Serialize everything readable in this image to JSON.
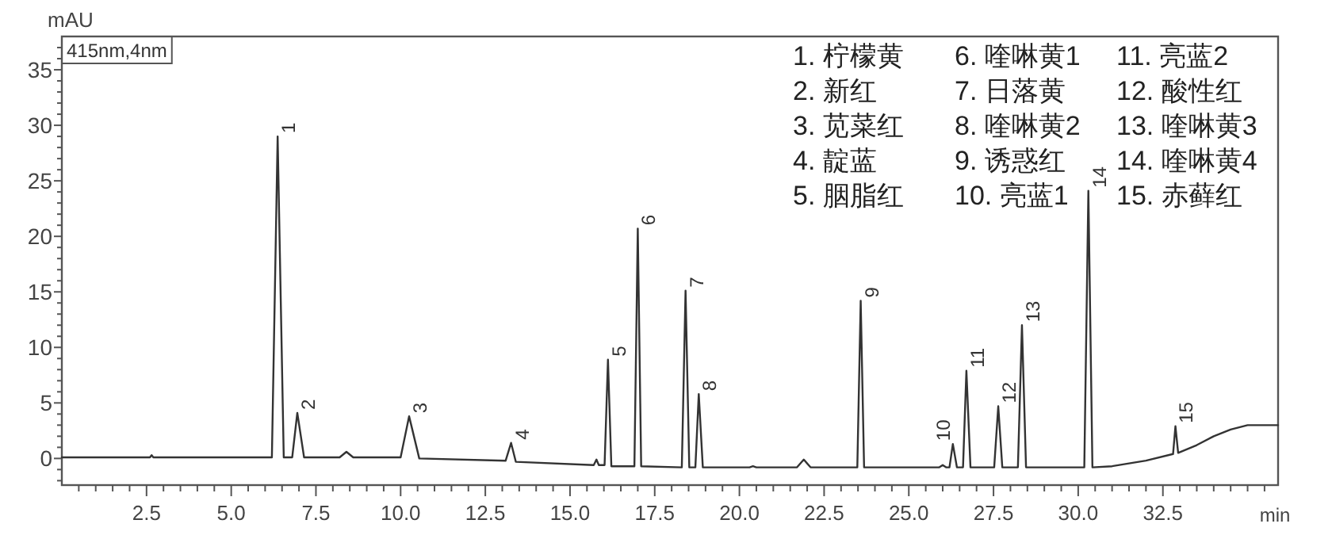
{
  "chart_data": {
    "type": "line",
    "xlabel": "min",
    "ylabel": "mAU",
    "x": [
      0,
      2.6,
      2.65,
      2.7,
      6.2,
      6.37,
      6.55,
      6.8,
      6.95,
      7.15,
      8.2,
      8.4,
      8.6,
      10.0,
      10.25,
      10.55,
      13.1,
      13.26,
      13.4,
      15.7,
      15.78,
      15.85,
      16.02,
      16.12,
      16.22,
      16.9,
      17.0,
      17.1,
      18.3,
      18.41,
      18.52,
      18.7,
      18.8,
      18.92,
      20.3,
      20.4,
      20.5,
      21.7,
      21.9,
      22.1,
      23.48,
      23.58,
      23.68,
      25.9,
      26.0,
      26.1,
      26.2,
      26.3,
      26.42,
      26.6,
      26.7,
      26.82,
      27.52,
      27.64,
      27.76,
      28.22,
      28.34,
      28.46,
      30.18,
      30.3,
      30.42,
      31.0,
      32.0,
      32.8,
      32.87,
      32.95,
      33.5,
      34.0,
      34.5,
      35.0,
      35.9
    ],
    "series": [
      {
        "color": "#333333",
        "values": [
          0.1,
          0.1,
          0.3,
          0.1,
          0.1,
          29.0,
          0.1,
          0.1,
          4.1,
          0.1,
          0.1,
          0.6,
          0.1,
          0.1,
          3.8,
          0.0,
          -0.2,
          1.4,
          -0.3,
          -0.6,
          -0.1,
          -0.6,
          -0.6,
          8.9,
          -0.7,
          -0.7,
          20.7,
          -0.7,
          -0.8,
          15.1,
          -0.8,
          -0.8,
          5.8,
          -0.8,
          -0.8,
          -0.7,
          -0.8,
          -0.8,
          -0.1,
          -0.8,
          -0.8,
          14.2,
          -0.8,
          -0.8,
          -0.6,
          -0.8,
          -0.8,
          1.3,
          -0.8,
          -0.8,
          7.9,
          -0.8,
          -0.8,
          4.7,
          -0.8,
          -0.8,
          12.0,
          -0.8,
          -0.8,
          24.1,
          -0.8,
          -0.7,
          -0.2,
          0.4,
          2.9,
          0.5,
          1.2,
          2.0,
          2.6,
          3.0,
          3.0
        ]
      }
    ],
    "xlim": [
      0,
      35.9
    ],
    "ylim": [
      -2.4,
      38
    ],
    "xticks": [
      {
        "value": 0.5,
        "label": null
      },
      {
        "value": 1.0,
        "label": null
      },
      {
        "value": 1.5,
        "label": null
      },
      {
        "value": 2.0,
        "label": null
      },
      {
        "value": 2.5,
        "label": "2.5"
      },
      {
        "value": 3.0,
        "label": null
      },
      {
        "value": 3.5,
        "label": null
      },
      {
        "value": 4.0,
        "label": null
      },
      {
        "value": 4.5,
        "label": null
      },
      {
        "value": 5.0,
        "label": "5.0"
      },
      {
        "value": 5.5,
        "label": null
      },
      {
        "value": 6.0,
        "label": null
      },
      {
        "value": 6.5,
        "label": null
      },
      {
        "value": 7.0,
        "label": null
      },
      {
        "value": 7.5,
        "label": "7.5"
      },
      {
        "value": 8.0,
        "label": null
      },
      {
        "value": 8.5,
        "label": null
      },
      {
        "value": 9.0,
        "label": null
      },
      {
        "value": 9.5,
        "label": null
      },
      {
        "value": 10.0,
        "label": "10.0"
      },
      {
        "value": 10.5,
        "label": null
      },
      {
        "value": 11.0,
        "label": null
      },
      {
        "value": 11.5,
        "label": null
      },
      {
        "value": 12.0,
        "label": null
      },
      {
        "value": 12.5,
        "label": "12.5"
      },
      {
        "value": 13.0,
        "label": null
      },
      {
        "value": 13.5,
        "label": null
      },
      {
        "value": 14.0,
        "label": null
      },
      {
        "value": 14.5,
        "label": null
      },
      {
        "value": 15.0,
        "label": "15.0"
      },
      {
        "value": 15.5,
        "label": null
      },
      {
        "value": 16.0,
        "label": null
      },
      {
        "value": 16.5,
        "label": null
      },
      {
        "value": 17.0,
        "label": null
      },
      {
        "value": 17.5,
        "label": "17.5"
      },
      {
        "value": 18.0,
        "label": null
      },
      {
        "value": 18.5,
        "label": null
      },
      {
        "value": 19.0,
        "label": null
      },
      {
        "value": 19.5,
        "label": null
      },
      {
        "value": 20.0,
        "label": "20.0"
      },
      {
        "value": 20.5,
        "label": null
      },
      {
        "value": 21.0,
        "label": null
      },
      {
        "value": 21.5,
        "label": null
      },
      {
        "value": 22.0,
        "label": null
      },
      {
        "value": 22.5,
        "label": "22.5"
      },
      {
        "value": 23.0,
        "label": null
      },
      {
        "value": 23.5,
        "label": null
      },
      {
        "value": 24.0,
        "label": null
      },
      {
        "value": 24.5,
        "label": null
      },
      {
        "value": 25.0,
        "label": "25.0"
      },
      {
        "value": 25.5,
        "label": null
      },
      {
        "value": 26.0,
        "label": null
      },
      {
        "value": 26.5,
        "label": null
      },
      {
        "value": 27.0,
        "label": null
      },
      {
        "value": 27.5,
        "label": "27.5"
      },
      {
        "value": 28.0,
        "label": null
      },
      {
        "value": 28.5,
        "label": null
      },
      {
        "value": 29.0,
        "label": null
      },
      {
        "value": 29.5,
        "label": null
      },
      {
        "value": 30.0,
        "label": "30.0"
      },
      {
        "value": 30.5,
        "label": null
      },
      {
        "value": 31.0,
        "label": null
      },
      {
        "value": 31.5,
        "label": null
      },
      {
        "value": 32.0,
        "label": null
      },
      {
        "value": 32.5,
        "label": "32.5"
      },
      {
        "value": 33.0,
        "label": null
      },
      {
        "value": 33.5,
        "label": null
      },
      {
        "value": 34.0,
        "label": null
      },
      {
        "value": 34.5,
        "label": null
      },
      {
        "value": 35.0,
        "label": null
      },
      {
        "value": 35.5,
        "label": null
      }
    ],
    "yticks": [
      {
        "value": -2,
        "label": null
      },
      {
        "value": -1,
        "label": null
      },
      0,
      {
        "value": 1,
        "label": null
      },
      {
        "value": 2,
        "label": null
      },
      {
        "value": 3,
        "label": null
      },
      {
        "value": 4,
        "label": null
      },
      5,
      {
        "value": 6,
        "label": null
      },
      {
        "value": 7,
        "label": null
      },
      {
        "value": 8,
        "label": null
      },
      {
        "value": 9,
        "label": null
      },
      10,
      {
        "value": 11,
        "label": null
      },
      {
        "value": 12,
        "label": null
      },
      {
        "value": 13,
        "label": null
      },
      {
        "value": 14,
        "label": null
      },
      15,
      {
        "value": 16,
        "label": null
      },
      {
        "value": 17,
        "label": null
      },
      {
        "value": 18,
        "label": null
      },
      {
        "value": 19,
        "label": null
      },
      20,
      {
        "value": 21,
        "label": null
      },
      {
        "value": 22,
        "label": null
      },
      {
        "value": 23,
        "label": null
      },
      {
        "value": 24,
        "label": null
      },
      25,
      {
        "value": 26,
        "label": null
      },
      {
        "value": 27,
        "label": null
      },
      {
        "value": 28,
        "label": null
      },
      {
        "value": 29,
        "label": null
      },
      30,
      {
        "value": 31,
        "label": null
      },
      {
        "value": 32,
        "label": null
      },
      {
        "value": 33,
        "label": null
      },
      {
        "value": 34,
        "label": null
      },
      35,
      {
        "value": 36,
        "label": null
      },
      {
        "value": 37,
        "label": null
      }
    ],
    "annotations": [
      "415nm,4nm",
      "1. 柠檬黄",
      "2. 新红",
      "3. 苋菜红",
      "4. 靛蓝",
      "5. 胭脂红",
      "6. 喹啉黄1",
      "7. 日落黄",
      "8. 喹啉黄2",
      "9. 诱惑红",
      "10. 亮蓝1",
      "11. 亮蓝2",
      "12. 酸性红",
      "13. 喹啉黄3",
      "14. 喹啉黄4",
      "15. 赤藓红",
      {
        "text": "1",
        "x": 6.37,
        "y": 29.0
      },
      {
        "text": "2",
        "x": 6.95,
        "y": 4.1
      },
      {
        "text": "3",
        "x": 10.25,
        "y": 3.8
      },
      {
        "text": "4",
        "x": 13.26,
        "y": 1.4
      },
      {
        "text": "5",
        "x": 16.12,
        "y": 8.9
      },
      {
        "text": "6",
        "x": 17.0,
        "y": 20.7
      },
      {
        "text": "7",
        "x": 18.41,
        "y": 15.1
      },
      {
        "text": "8",
        "x": 18.8,
        "y": 5.8
      },
      {
        "text": "9",
        "x": 23.58,
        "y": 14.2
      },
      {
        "text": "10",
        "x": 26.3,
        "y": 1.3
      },
      {
        "text": "11",
        "x": 26.7,
        "y": 7.9
      },
      {
        "text": "12",
        "x": 27.64,
        "y": 4.7
      },
      {
        "text": "13",
        "x": 28.34,
        "y": 12.0
      },
      {
        "text": "14",
        "x": 30.3,
        "y": 24.1
      },
      {
        "text": "15",
        "x": 32.87,
        "y": 2.9
      }
    ]
  }
}
